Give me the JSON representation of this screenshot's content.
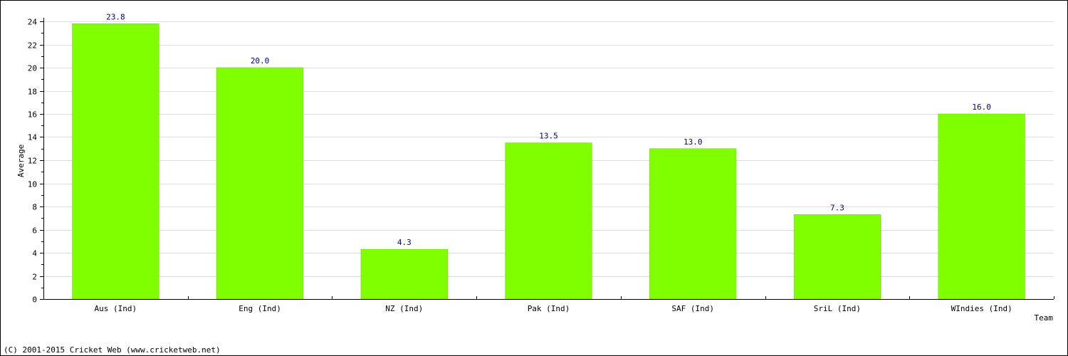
{
  "chart_data": {
    "type": "bar",
    "categories": [
      "Aus (Ind)",
      "Eng (Ind)",
      "NZ (Ind)",
      "Pak (Ind)",
      "SAF (Ind)",
      "SriL (Ind)",
      "WIndies (Ind)"
    ],
    "values": [
      23.8,
      20.0,
      4.3,
      13.5,
      13.0,
      7.3,
      16.0
    ],
    "value_labels": [
      "23.8",
      "20.0",
      "4.3",
      "13.5",
      "13.0",
      "7.3",
      "16.0"
    ],
    "xlabel": "Team",
    "ylabel": "Average",
    "ylim": [
      0,
      24
    ],
    "y_ticks": [
      0,
      2,
      4,
      6,
      8,
      10,
      12,
      14,
      16,
      18,
      20,
      22,
      24
    ],
    "grid": true,
    "bar_color": "#80ff00",
    "value_label_color": "#000080"
  },
  "footer": {
    "copyright": "(C) 2001-2015 Cricket Web (www.cricketweb.net)"
  }
}
